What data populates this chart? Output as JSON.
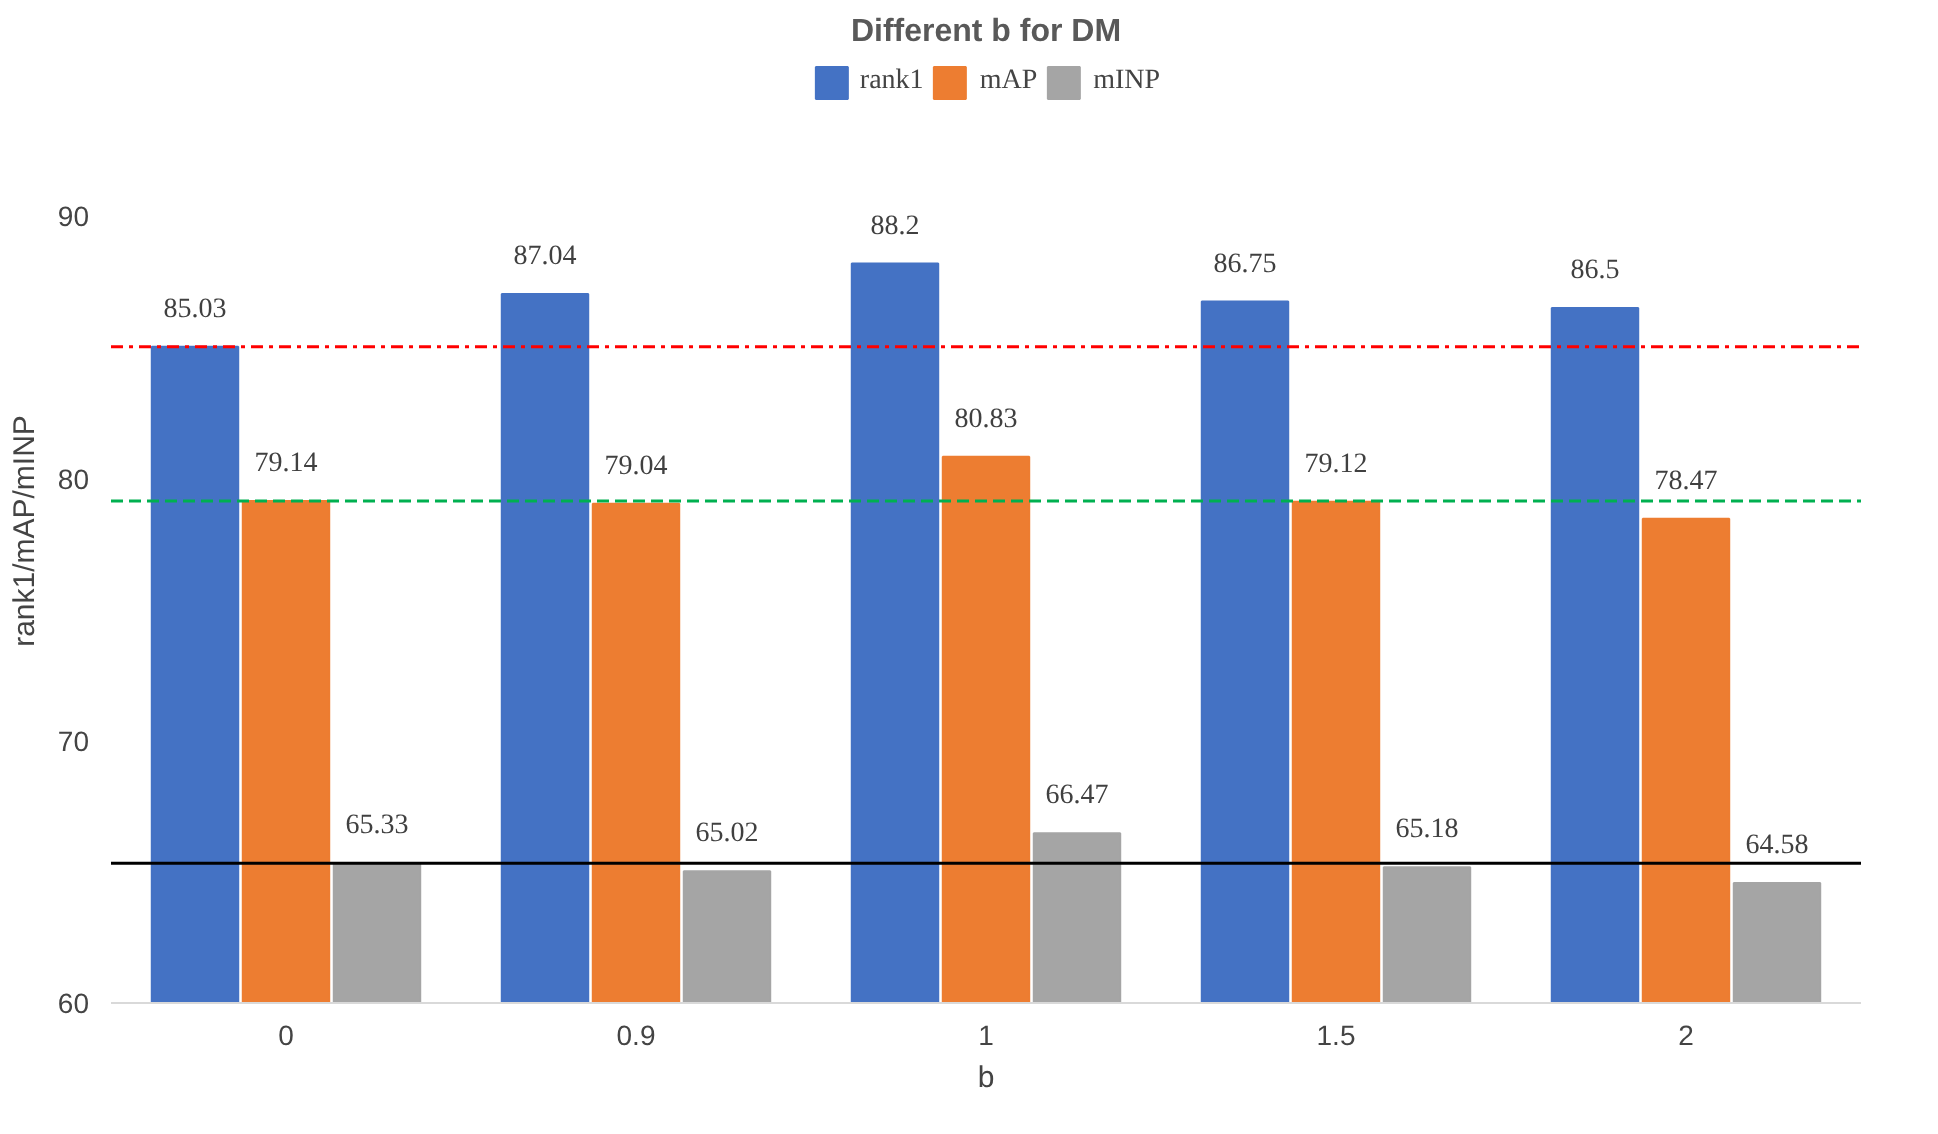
{
  "chart_data": {
    "type": "bar",
    "title": "Different b for DM",
    "xlabel": "b",
    "ylabel": "rank1/mAP/mINP",
    "categories": [
      "0",
      "0.9",
      "1",
      "1.5",
      "2"
    ],
    "series": [
      {
        "name": "rank1",
        "color": "#4472c4",
        "values": [
          85.03,
          87.04,
          88.2,
          86.75,
          86.5
        ]
      },
      {
        "name": "mAP",
        "color": "#ed7d31",
        "values": [
          79.14,
          79.04,
          80.83,
          79.12,
          78.47
        ]
      },
      {
        "name": "mINP",
        "color": "#a5a5a5",
        "values": [
          65.33,
          65.02,
          66.47,
          65.18,
          64.58
        ]
      }
    ],
    "ylim": [
      60,
      96
    ],
    "yticks": [
      60,
      70,
      80,
      90
    ],
    "data_labels": true,
    "legend": "top",
    "grid": false,
    "ref_lines": [
      {
        "axis": "y",
        "value": 85.03,
        "color": "#ff0000",
        "line_style": "dashdot"
      },
      {
        "axis": "y",
        "value": 79.14,
        "color": "#00b050",
        "line_style": "dashed"
      },
      {
        "axis": "y",
        "value": 65.33,
        "color": "#000000",
        "line_style": "solid"
      }
    ]
  }
}
